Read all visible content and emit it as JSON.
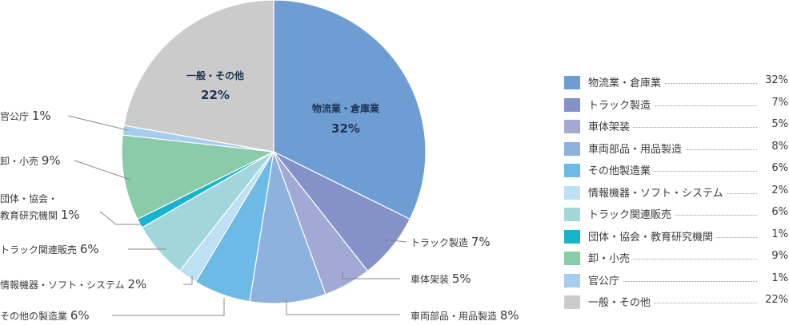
{
  "chart_data": {
    "type": "pie",
    "title": "",
    "slices": [
      {
        "label": "物流業・倉庫業",
        "value": 32,
        "value_label": "32%",
        "color": "#6e9dd3"
      },
      {
        "label": "トラック製造",
        "value": 7,
        "value_label": "7%",
        "color": "#8592ca"
      },
      {
        "label": "車体架装",
        "value": 5,
        "value_label": "5%",
        "color": "#a3a9d5"
      },
      {
        "label": "車両部品・用品製造",
        "value": 8,
        "value_label": "8%",
        "color": "#8db2dd"
      },
      {
        "label": "その他製造業",
        "value": 6,
        "value_label": "6%",
        "color": "#6dbae6"
      },
      {
        "label": "情報機器・ソフト・システム",
        "value": 2,
        "value_label": "2%",
        "color": "#bde0f4"
      },
      {
        "label": "トラック関連販売",
        "value": 6,
        "value_label": "6%",
        "color": "#a3d6dc"
      },
      {
        "label": "団体・協会・教育研究機関",
        "value": 1,
        "value_label": "1%",
        "color": "#18b4cd"
      },
      {
        "label": "卸・小売",
        "value": 9,
        "value_label": "9%",
        "color": "#8acbaa"
      },
      {
        "label": "官公庁",
        "value": 1,
        "value_label": "1%",
        "color": "#a6cdee"
      },
      {
        "label": "一般・その他",
        "value": 22,
        "value_label": "22%",
        "color": "#cbcbcb"
      }
    ],
    "callouts": [
      {
        "text": "トラック製造",
        "value": "7%"
      },
      {
        "text": "車体架装",
        "value": "5%"
      },
      {
        "text": "車両部品・用品製造",
        "value": "8%"
      },
      {
        "text": "その他の製造業",
        "value": "6%"
      },
      {
        "text": "情報機器・ソフト・システム",
        "value": "2%"
      },
      {
        "text": "トラック関連販売",
        "value": "6%"
      },
      {
        "text": "団体・協会・",
        "text2": "教育研究機関",
        "value": "1%"
      },
      {
        "text": "卸・小売",
        "value": "9%"
      },
      {
        "text": "官公庁",
        "value": "1%"
      }
    ],
    "inside_labels": [
      {
        "text": "物流業・倉庫業",
        "value": "32%"
      },
      {
        "text": "一般・その他",
        "value": "22%"
      }
    ],
    "legend_position": "right"
  },
  "colors": {
    "leader_line": "#888888",
    "slice_border": "#ffffff",
    "text": "#3a3a3a",
    "inside_text": "#1f3550"
  }
}
